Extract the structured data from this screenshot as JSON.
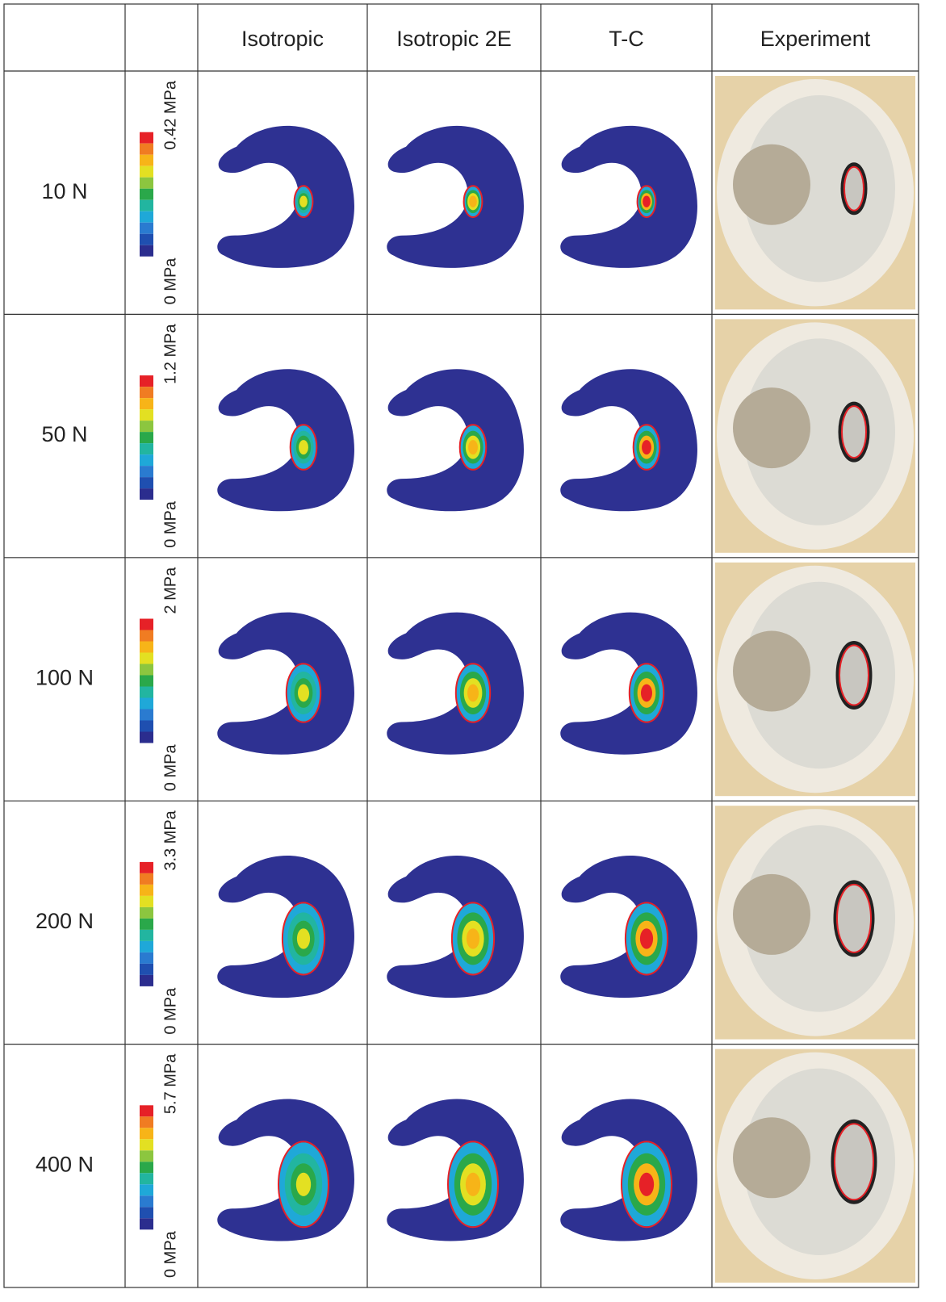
{
  "header": {
    "columns": [
      "Isotropic",
      "Isotropic 2E",
      "T-C",
      "Experiment"
    ]
  },
  "rows": [
    {
      "load": "10 N",
      "max": "0.42 MPa",
      "min": "0 MPa"
    },
    {
      "load": "50 N",
      "max": "1.2 MPa",
      "min": "0 MPa"
    },
    {
      "load": "100 N",
      "max": "2 MPa",
      "min": "0 MPa"
    },
    {
      "load": "200 N",
      "max": "3.3 MPa",
      "min": "0 MPa"
    },
    {
      "load": "400 N",
      "max": "5.7 MPa",
      "min": "0 MPa"
    }
  ]
}
